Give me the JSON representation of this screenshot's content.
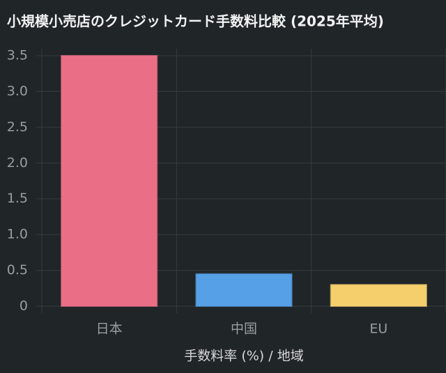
{
  "chart_data": {
    "type": "bar",
    "title": "小規模小売店のクレジットカード手数料比較 (2025年平均)",
    "xlabel": "手数料率 (%) / 地域",
    "categories": [
      "日本",
      "中国",
      "EU"
    ],
    "values": [
      3.5,
      0.45,
      0.3
    ],
    "colors": [
      "#eb6e87",
      "#55a0e6",
      "#f5cf6c"
    ],
    "ylim": [
      0,
      3.5
    ],
    "yticks": [
      0,
      0.5,
      {
        "value": 1,
        "label": "1.0"
      },
      1.5,
      {
        "value": 2,
        "label": "2.0"
      },
      2.5,
      {
        "value": 3,
        "label": "3.0"
      },
      3.5
    ],
    "grid": true
  }
}
